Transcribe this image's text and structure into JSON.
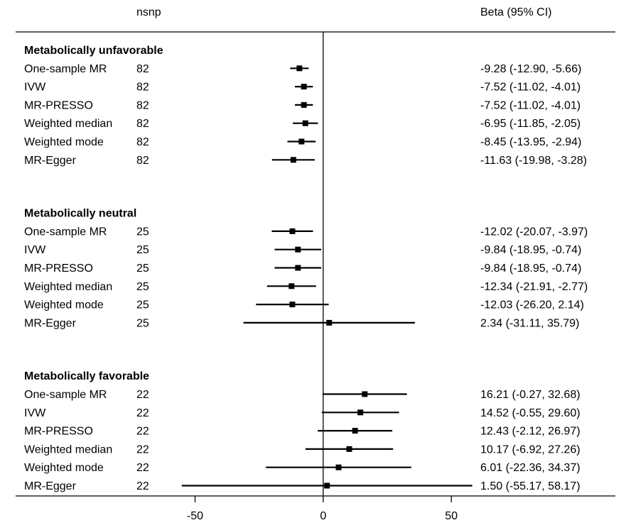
{
  "chart_data": {
    "type": "forest",
    "col_headers": {
      "nsnp": "nsnp",
      "ci": "Beta (95% CI)"
    },
    "x_ticks": [
      -50,
      0,
      50
    ],
    "xlim": [
      -120,
      114
    ],
    "reference_line": 0,
    "groups": [
      {
        "title": "Metabolically unfavorable",
        "rows": [
          {
            "method": "One-sample MR",
            "nsnp": "82",
            "beta": -9.28,
            "lo": -12.9,
            "hi": -5.66,
            "label": "-9.28 (-12.90, -5.66)"
          },
          {
            "method": "IVW",
            "nsnp": "82",
            "beta": -7.52,
            "lo": -11.02,
            "hi": -4.01,
            "label": "-7.52 (-11.02, -4.01)"
          },
          {
            "method": "MR-PRESSO",
            "nsnp": "82",
            "beta": -7.52,
            "lo": -11.02,
            "hi": -4.01,
            "label": "-7.52 (-11.02, -4.01)"
          },
          {
            "method": "Weighted median",
            "nsnp": "82",
            "beta": -6.95,
            "lo": -11.85,
            "hi": -2.05,
            "label": "-6.95 (-11.85, -2.05)"
          },
          {
            "method": "Weighted mode",
            "nsnp": "82",
            "beta": -8.45,
            "lo": -13.95,
            "hi": -2.94,
            "label": "-8.45 (-13.95, -2.94)"
          },
          {
            "method": "MR-Egger",
            "nsnp": "82",
            "beta": -11.63,
            "lo": -19.98,
            "hi": -3.28,
            "label": "-11.63 (-19.98, -3.28)"
          }
        ]
      },
      {
        "title": "Metabolically neutral",
        "rows": [
          {
            "method": "One-sample MR",
            "nsnp": "25",
            "beta": -12.02,
            "lo": -20.07,
            "hi": -3.97,
            "label": "-12.02 (-20.07, -3.97)"
          },
          {
            "method": "IVW",
            "nsnp": "25",
            "beta": -9.84,
            "lo": -18.95,
            "hi": -0.74,
            "label": "-9.84 (-18.95, -0.74)"
          },
          {
            "method": "MR-PRESSO",
            "nsnp": "25",
            "beta": -9.84,
            "lo": -18.95,
            "hi": -0.74,
            "label": "-9.84 (-18.95, -0.74)"
          },
          {
            "method": "Weighted median",
            "nsnp": "25",
            "beta": -12.34,
            "lo": -21.91,
            "hi": -2.77,
            "label": "-12.34 (-21.91, -2.77)"
          },
          {
            "method": "Weighted mode",
            "nsnp": "25",
            "beta": -12.03,
            "lo": -26.2,
            "hi": 2.14,
            "label": "-12.03 (-26.20, 2.14)"
          },
          {
            "method": "MR-Egger",
            "nsnp": "25",
            "beta": 2.34,
            "lo": -31.11,
            "hi": 35.79,
            "label": "2.34 (-31.11, 35.79)"
          }
        ]
      },
      {
        "title": "Metabolically favorable",
        "rows": [
          {
            "method": "One-sample MR",
            "nsnp": "22",
            "beta": 16.21,
            "lo": -0.27,
            "hi": 32.68,
            "label": "16.21 (-0.27, 32.68)"
          },
          {
            "method": "IVW",
            "nsnp": "22",
            "beta": 14.52,
            "lo": -0.55,
            "hi": 29.6,
            "label": "14.52 (-0.55, 29.60)"
          },
          {
            "method": "MR-PRESSO",
            "nsnp": "22",
            "beta": 12.43,
            "lo": -2.12,
            "hi": 26.97,
            "label": "12.43 (-2.12, 26.97)"
          },
          {
            "method": "Weighted median",
            "nsnp": "22",
            "beta": 10.17,
            "lo": -6.92,
            "hi": 27.26,
            "label": "10.17 (-6.92, 27.26)"
          },
          {
            "method": "Weighted mode",
            "nsnp": "22",
            "beta": 6.01,
            "lo": -22.36,
            "hi": 34.37,
            "label": "6.01 (-22.36, 34.37)"
          },
          {
            "method": "MR-Egger",
            "nsnp": "22",
            "beta": 1.5,
            "lo": -55.17,
            "hi": 58.17,
            "label": "1.50 (-55.17, 58.17)"
          }
        ]
      }
    ]
  }
}
